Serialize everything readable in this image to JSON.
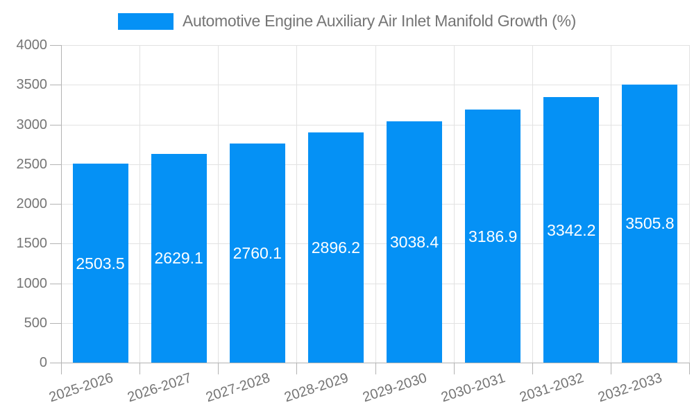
{
  "chart_data": {
    "type": "bar",
    "title": "Automotive Engine Auxiliary Air Inlet Manifold Growth (%)",
    "xlabel": "",
    "ylabel": "",
    "categories": [
      "2025-2026",
      "2026-2027",
      "2027-2028",
      "2028-2029",
      "2029-2030",
      "2030-2031",
      "2031-2032",
      "2032-2033"
    ],
    "values": [
      2503.5,
      2629.1,
      2760.1,
      2896.2,
      3038.4,
      3186.9,
      3342.2,
      3505.8
    ],
    "value_labels": [
      "2503.5",
      "2629.1",
      "2760.1",
      "2896.2",
      "3038.4",
      "3186.9",
      "3342.2",
      "3505.8"
    ],
    "ylim": [
      0,
      4000
    ],
    "yticks": [
      0,
      500,
      1000,
      1500,
      2000,
      2500,
      3000,
      3500,
      4000
    ],
    "grid": true,
    "legend_position": "top-center",
    "x_label_rotation_deg": -18,
    "colors": {
      "bar": "#0591f5",
      "grid": "#e2e2e2",
      "axis": "#b3b3b3",
      "text": "#757575",
      "value_label": "#ffffff",
      "background": "#ffffff"
    }
  }
}
